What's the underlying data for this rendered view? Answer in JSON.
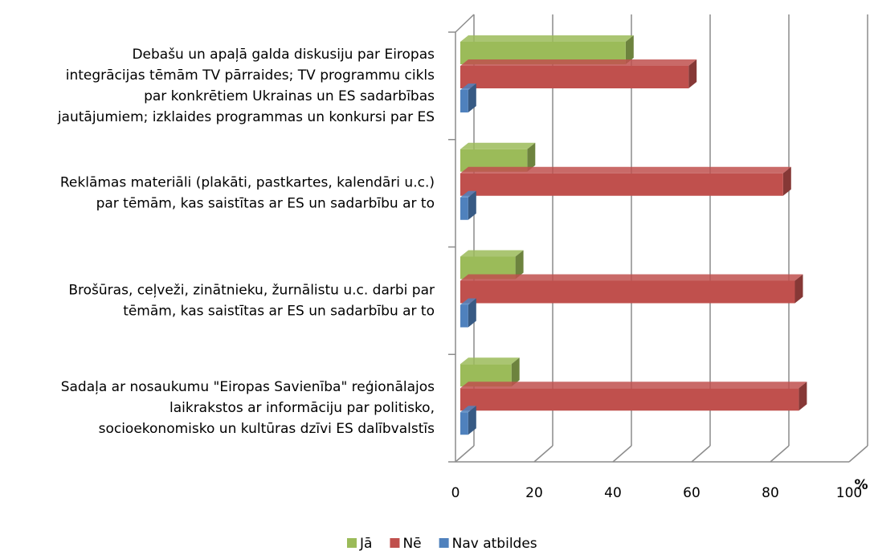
{
  "chart_data": {
    "type": "bar3d-horizontal",
    "categories": [
      [
        "Debašu un apaļā galda diskusiju par Eiropas",
        "integrācijas tēmām TV pārraides; TV programmu cikls",
        "par konkrētiem Ukrainas un ES sadarbības",
        "jautājumiem; izklaides programmas un konkursi par ES"
      ],
      [
        "Reklāmas materiāli (plakāti, pastkartes, kalendāri u.c.)",
        "par tēmām, kas saistītas ar ES un sadarbību ar to"
      ],
      [
        "Brošūras, ceļveži, zinātnieku, žurnālistu u.c. darbi par",
        "tēmām, kas saistītas ar ES un sadarbību ar to"
      ],
      [
        "Sadaļa ar nosaukumu \"Eiropas Savienība\" reģionālajos",
        "laikrakstos ar informāciju par politisko,",
        "socioekonomisko un kultūras dzīvi ES dalībvalstīs"
      ]
    ],
    "series": [
      {
        "name": "Jā",
        "color": "#9bbb59",
        "values": [
          42,
          17,
          14,
          13
        ]
      },
      {
        "name": "Nē",
        "color": "#c0504d",
        "values": [
          58,
          82,
          85,
          86
        ]
      },
      {
        "name": "Nav atbildes",
        "color": "#4f81bd",
        "values": [
          2,
          2,
          2,
          2
        ]
      }
    ],
    "x_label": "%",
    "xlim": [
      0,
      100
    ],
    "xticks": [
      0,
      20,
      40,
      60,
      80,
      100
    ],
    "grid": true,
    "legend": "bottom"
  }
}
